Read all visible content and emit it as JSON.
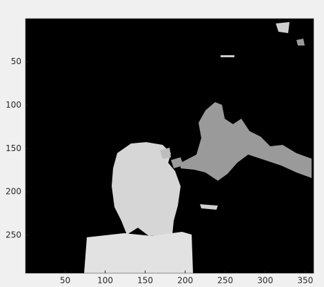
{
  "chart_data": {
    "type": "image",
    "xlim": [
      0.5,
      360.5
    ],
    "ylim": [
      0.5,
      293.5
    ],
    "y_reversed": true,
    "xticks": [
      50,
      100,
      150,
      200,
      250,
      300,
      350
    ],
    "yticks": [
      50,
      100,
      150,
      200,
      250
    ]
  }
}
